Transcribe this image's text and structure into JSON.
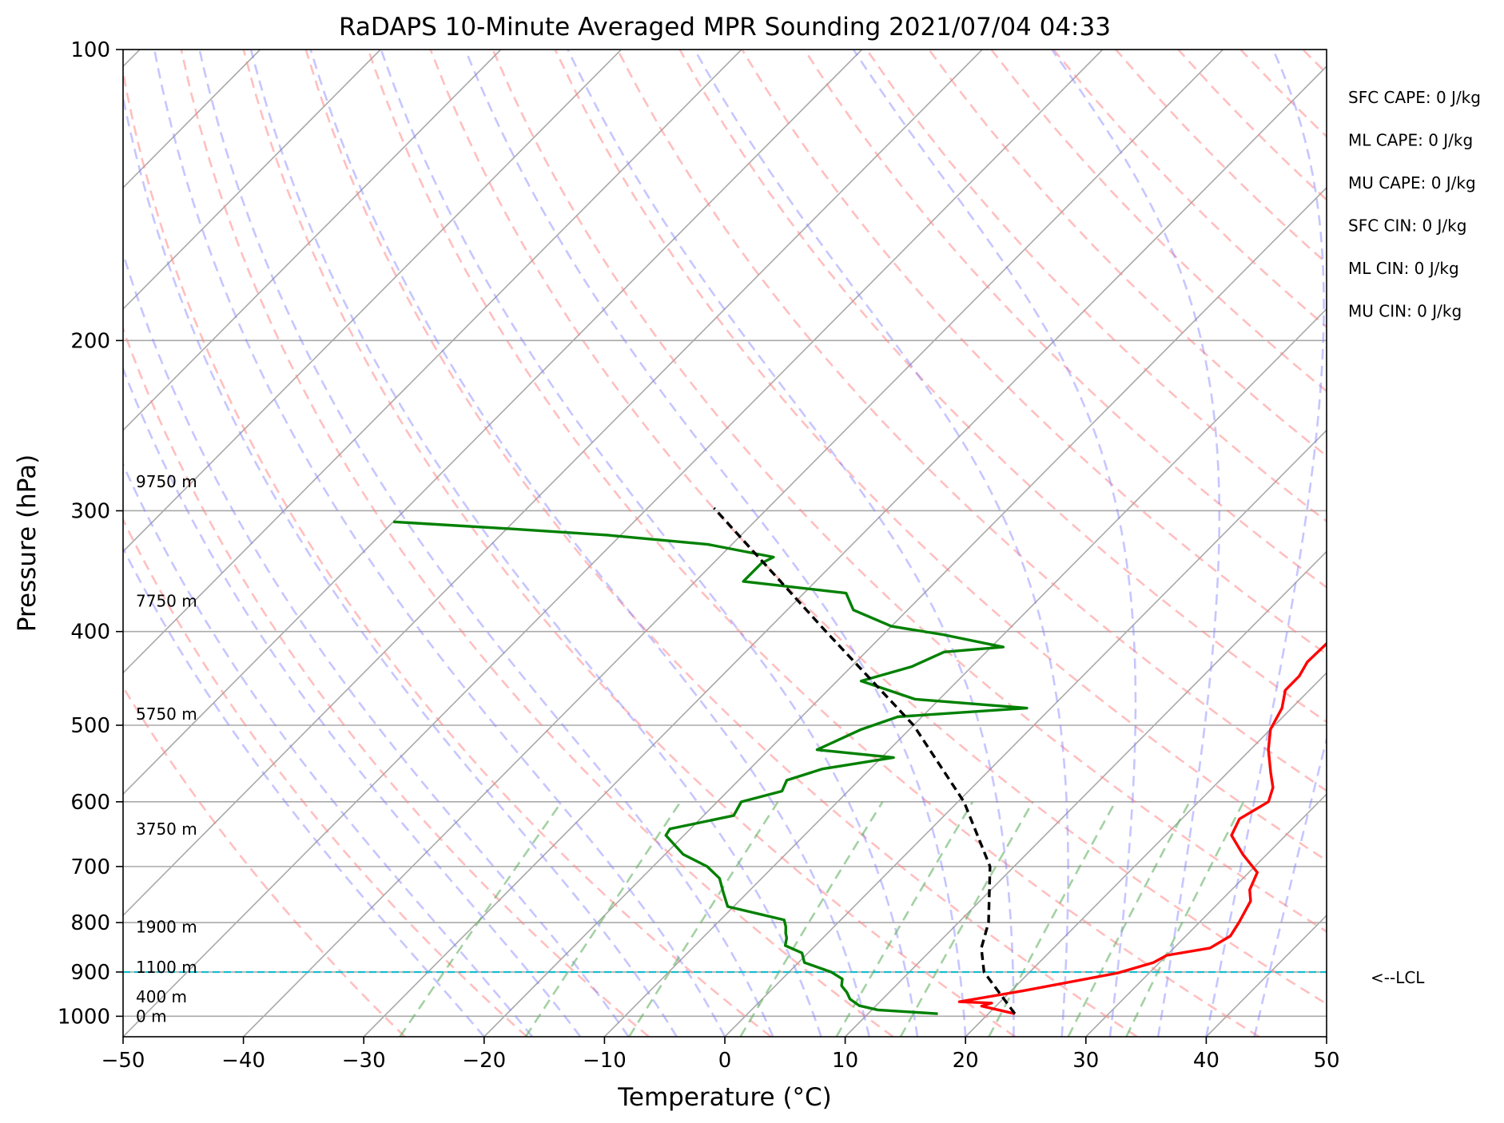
{
  "title": "RaDAPS 10-Minute Averaged MPR Sounding 2021/07/04 04:33",
  "chart_data": {
    "type": "line",
    "subtype": "skew-T log-P diagram",
    "title": "RaDAPS 10-Minute Averaged MPR Sounding 2021/07/04 04:33",
    "xlabel": "Temperature (°C)",
    "ylabel": "Pressure (hPa)",
    "xlim": [
      -50,
      50
    ],
    "ylim": [
      1050,
      100
    ],
    "y_scale": "log",
    "x_ticks": [
      "−50",
      "−40",
      "−30",
      "−20",
      "−10",
      "0",
      "10",
      "20",
      "30",
      "40",
      "50"
    ],
    "y_ticks": [
      "100",
      "200",
      "300",
      "400",
      "500",
      "600",
      "700",
      "800",
      "900",
      "1000"
    ],
    "grid": true,
    "background_lines": {
      "isotherms": {
        "color": "#a9a9a9",
        "style": "solid"
      },
      "dry_adiabats": {
        "color": "#ff8080",
        "style": "dashed"
      },
      "moist_adiabats": {
        "color": "#8080ff",
        "style": "dashed"
      },
      "mixing_ratio_lines": {
        "color": "#66b266",
        "style": "dashed"
      }
    },
    "series": [
      {
        "color": "#ff0000",
        "style": "solid",
        "points": [
          [
            994,
            22.2
          ],
          [
            976,
            18.8
          ],
          [
            969,
            19.4
          ],
          [
            966,
            16.6
          ],
          [
            940,
            21.2
          ],
          [
            902,
            27.4
          ],
          [
            880,
            29.5
          ],
          [
            865,
            30.0
          ],
          [
            850,
            33.0
          ],
          [
            826,
            33.7
          ],
          [
            800,
            33.3
          ],
          [
            760,
            32.5
          ],
          [
            740,
            31.5
          ],
          [
            710,
            30.7
          ],
          [
            680,
            28.0
          ],
          [
            650,
            25.5
          ],
          [
            625,
            24.8
          ],
          [
            600,
            25.8
          ],
          [
            580,
            25.0
          ],
          [
            560,
            23.6
          ],
          [
            530,
            21.5
          ],
          [
            505,
            20.0
          ],
          [
            480,
            19.2
          ],
          [
            460,
            18.0
          ],
          [
            445,
            18.0
          ],
          [
            430,
            17.5
          ],
          [
            410,
            17.6
          ],
          [
            395,
            17.8
          ],
          [
            375,
            16.7
          ],
          [
            355,
            16.3
          ],
          [
            335,
            15.8
          ],
          [
            315,
            14.8
          ],
          [
            298,
            13.2
          ]
        ]
      },
      {
        "color": "#008000",
        "style": "solid",
        "points": [
          [
            994,
            15.8
          ],
          [
            985,
            10.5
          ],
          [
            975,
            8.6
          ],
          [
            960,
            7.3
          ],
          [
            945,
            6.5
          ],
          [
            930,
            5.5
          ],
          [
            915,
            5.0
          ],
          [
            900,
            3.5
          ],
          [
            880,
            0.5
          ],
          [
            860,
            -0.5
          ],
          [
            845,
            -2.5
          ],
          [
            830,
            -3.0
          ],
          [
            820,
            -3.5
          ],
          [
            808,
            -4.0
          ],
          [
            795,
            -4.7
          ],
          [
            770,
            -10.5
          ],
          [
            745,
            -12.0
          ],
          [
            720,
            -13.5
          ],
          [
            700,
            -15.5
          ],
          [
            680,
            -18.5
          ],
          [
            650,
            -21.5
          ],
          [
            640,
            -21.7
          ],
          [
            620,
            -17.5
          ],
          [
            600,
            -18.0
          ],
          [
            585,
            -15.5
          ],
          [
            570,
            -16.0
          ],
          [
            555,
            -14.0
          ],
          [
            540,
            -9.0
          ],
          [
            530,
            -16.0
          ],
          [
            505,
            -14.0
          ],
          [
            490,
            -12.0
          ],
          [
            480,
            -2.0
          ],
          [
            470,
            -12.0
          ],
          [
            450,
            -18.0
          ],
          [
            435,
            -15.0
          ],
          [
            420,
            -13.5
          ],
          [
            415,
            -9.0
          ],
          [
            403,
            -15.0
          ],
          [
            395,
            -20.0
          ],
          [
            380,
            -24.5
          ],
          [
            365,
            -26.5
          ],
          [
            355,
            -36.0
          ],
          [
            340,
            -36.0
          ],
          [
            335,
            -35.5
          ],
          [
            325,
            -42.0
          ],
          [
            318,
            -51.0
          ],
          [
            313,
            -60.0
          ],
          [
            308,
            -70.0
          ]
        ]
      },
      {
        "color": "#000000",
        "style": "dashed",
        "points": [
          [
            994,
            22.2
          ],
          [
            900,
            16.2
          ],
          [
            850,
            14.0
          ],
          [
            800,
            12.5
          ],
          [
            700,
            8.0
          ],
          [
            600,
            0.5
          ],
          [
            500,
            -10.0
          ],
          [
            400,
            -25.0
          ],
          [
            298,
            -44.5
          ]
        ]
      }
    ],
    "lcl_pressure": 900,
    "lcl_label": "<--LCL",
    "height_labels": [
      {
        "text": "0 m",
        "pressure": 1000
      },
      {
        "text": "400 m",
        "pressure": 955
      },
      {
        "text": "1100 m",
        "pressure": 890
      },
      {
        "text": "1900 m",
        "pressure": 808
      },
      {
        "text": "3750 m",
        "pressure": 640
      },
      {
        "text": "5750 m",
        "pressure": 487
      },
      {
        "text": "7750 m",
        "pressure": 372
      },
      {
        "text": "9750 m",
        "pressure": 280
      }
    ],
    "stats": [
      "SFC CAPE: 0 J/kg",
      "ML CAPE: 0 J/kg",
      "MU CAPE: 0 J/kg",
      "SFC CIN: 0 J/kg",
      "ML CIN: 0 J/kg",
      "MU CIN: 0 J/kg"
    ]
  }
}
